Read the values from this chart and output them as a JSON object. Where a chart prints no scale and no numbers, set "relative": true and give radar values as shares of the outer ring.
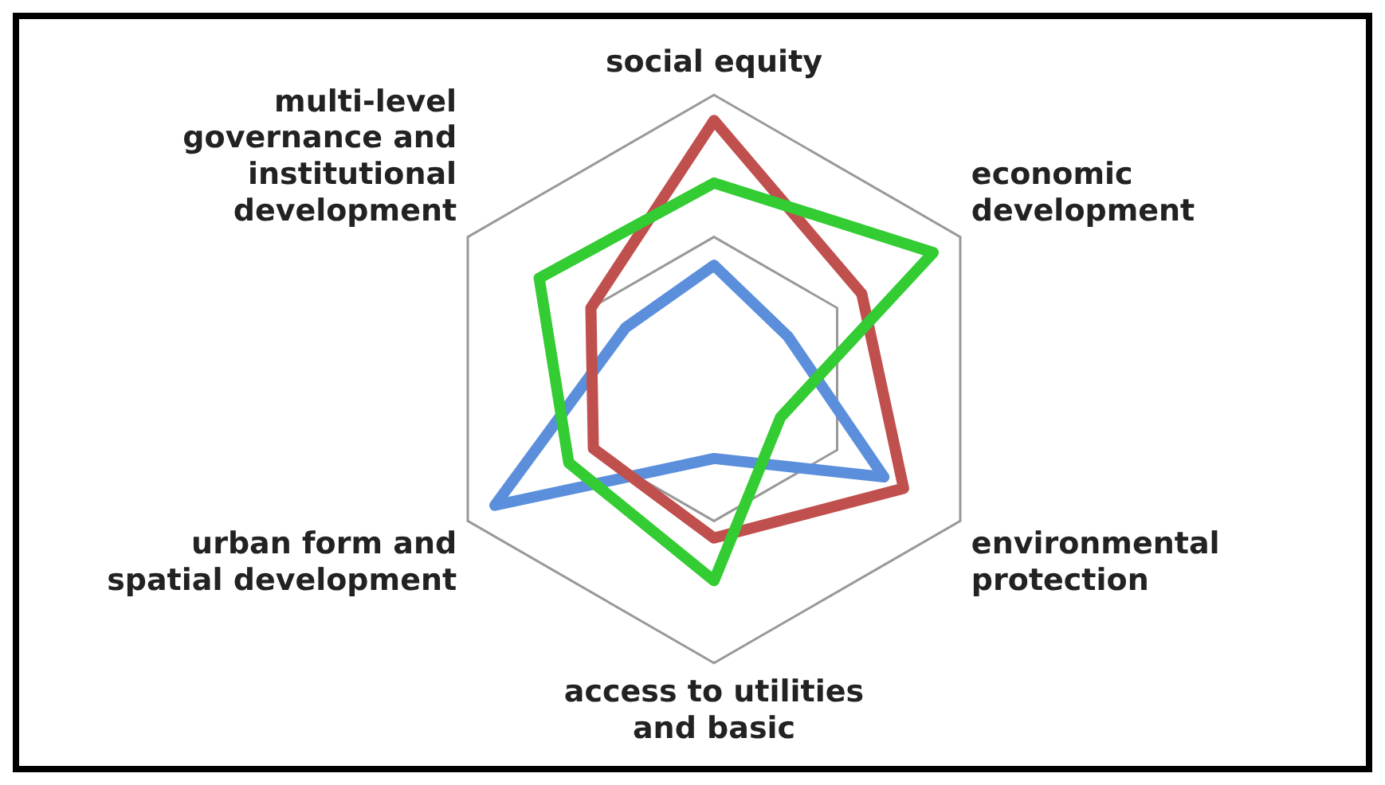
{
  "chart_data": {
    "type": "radar",
    "relative": true,
    "grid": true,
    "legend": false,
    "marker": "none",
    "categories": [
      "social equity",
      "economic development",
      "environmental protection",
      "access to utilities and basic",
      "urban form and spatial development",
      "multi-level governance and institutional development"
    ],
    "series": [
      {
        "color": "#33cc33",
        "values": [
          0.69,
          0.89,
          0.27,
          0.71,
          0.59,
          0.71
        ]
      },
      {
        "color": "#c0504d",
        "values": [
          0.91,
          0.6,
          0.77,
          0.56,
          0.49,
          0.5
        ]
      },
      {
        "color": "#5b8fdc",
        "values": [
          0.4,
          0.3,
          0.69,
          0.28,
          0.89,
          0.36
        ]
      }
    ]
  }
}
